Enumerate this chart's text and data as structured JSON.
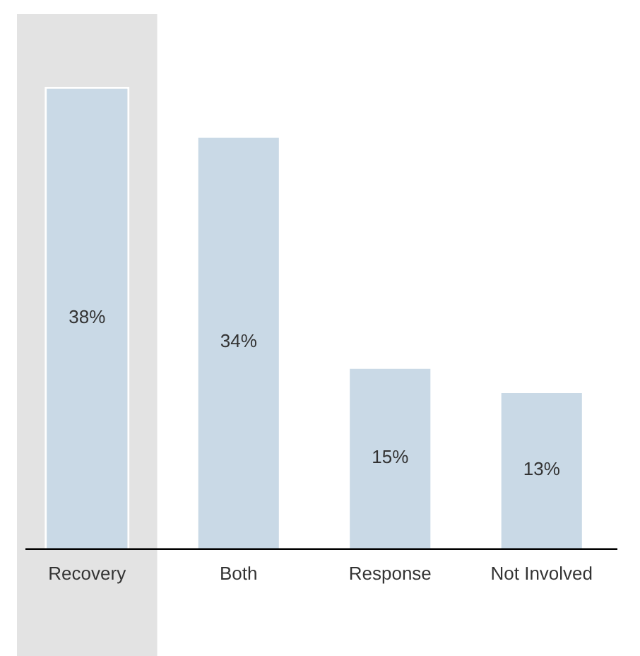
{
  "chart_data": {
    "type": "bar",
    "categories": [
      "Recovery",
      "Both",
      "Response",
      "Not Involved"
    ],
    "values": [
      38,
      34,
      15,
      13
    ],
    "value_labels": [
      "38%",
      "34%",
      "15%",
      "13%"
    ],
    "color": "#c9d9e6",
    "bands": [
      {
        "axis": "x",
        "from": "Recovery",
        "to": "Recovery",
        "color": "#e3e3e3"
      }
    ],
    "tick_labels": "x",
    "grid": false,
    "legend": false
  }
}
